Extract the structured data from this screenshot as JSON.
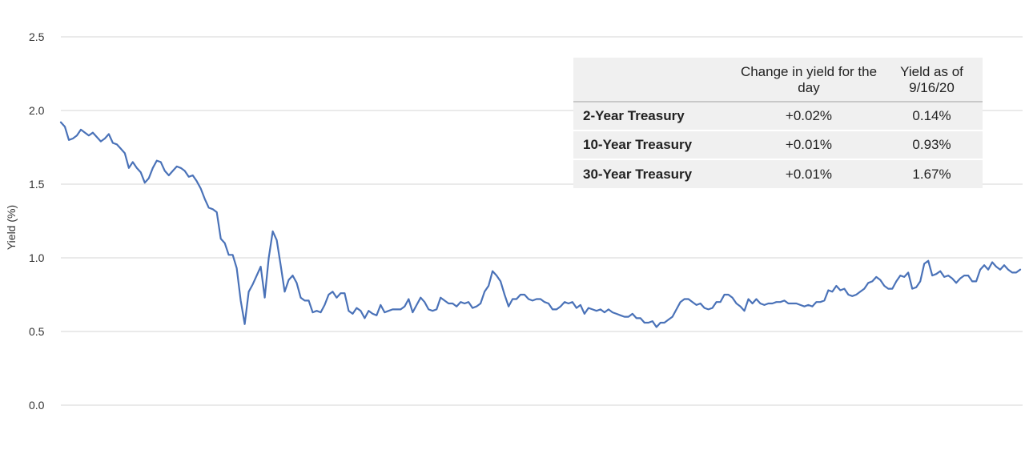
{
  "chart_data": {
    "type": "line",
    "ylabel": "Yield (%)",
    "xlabel": "",
    "ylim": [
      0.0,
      2.5
    ],
    "yticks": [
      "0.0",
      "0.5",
      "1.0",
      "1.5",
      "2.0",
      "2.5"
    ],
    "grid": true,
    "series": [
      {
        "color": "#4a72b8",
        "values": [
          1.92,
          1.89,
          1.8,
          1.81,
          1.83,
          1.87,
          1.85,
          1.83,
          1.85,
          1.82,
          1.79,
          1.81,
          1.84,
          1.78,
          1.77,
          1.74,
          1.71,
          1.61,
          1.65,
          1.61,
          1.58,
          1.51,
          1.54,
          1.61,
          1.66,
          1.65,
          1.59,
          1.56,
          1.59,
          1.62,
          1.61,
          1.59,
          1.55,
          1.56,
          1.52,
          1.47,
          1.4,
          1.34,
          1.33,
          1.31,
          1.13,
          1.1,
          1.02,
          1.02,
          0.93,
          0.71,
          0.55,
          0.77,
          0.82,
          0.88,
          0.94,
          0.73,
          1.0,
          1.18,
          1.12,
          0.95,
          0.77,
          0.85,
          0.88,
          0.83,
          0.73,
          0.71,
          0.71,
          0.63,
          0.64,
          0.63,
          0.68,
          0.75,
          0.77,
          0.73,
          0.76,
          0.76,
          0.64,
          0.62,
          0.66,
          0.64,
          0.59,
          0.64,
          0.62,
          0.61,
          0.68,
          0.63,
          0.64,
          0.65,
          0.65,
          0.65,
          0.67,
          0.72,
          0.63,
          0.68,
          0.73,
          0.7,
          0.65,
          0.64,
          0.65,
          0.73,
          0.71,
          0.69,
          0.69,
          0.67,
          0.7,
          0.69,
          0.7,
          0.66,
          0.67,
          0.69,
          0.77,
          0.81,
          0.91,
          0.88,
          0.84,
          0.75,
          0.67,
          0.72,
          0.72,
          0.75,
          0.75,
          0.72,
          0.71,
          0.72,
          0.72,
          0.7,
          0.69,
          0.65,
          0.65,
          0.67,
          0.7,
          0.69,
          0.7,
          0.66,
          0.68,
          0.62,
          0.66,
          0.65,
          0.64,
          0.65,
          0.63,
          0.65,
          0.63,
          0.62,
          0.61,
          0.6,
          0.6,
          0.62,
          0.59,
          0.59,
          0.56,
          0.56,
          0.57,
          0.53,
          0.56,
          0.56,
          0.58,
          0.6,
          0.65,
          0.7,
          0.72,
          0.72,
          0.7,
          0.68,
          0.69,
          0.66,
          0.65,
          0.66,
          0.7,
          0.7,
          0.75,
          0.75,
          0.73,
          0.69,
          0.67,
          0.64,
          0.72,
          0.69,
          0.72,
          0.69,
          0.68,
          0.69,
          0.69,
          0.7,
          0.7,
          0.71,
          0.69,
          0.69,
          0.69,
          0.68,
          0.67,
          0.68,
          0.67,
          0.7,
          0.7,
          0.71,
          0.78,
          0.77,
          0.81,
          0.78,
          0.79,
          0.75,
          0.74,
          0.75,
          0.77,
          0.79,
          0.83,
          0.84,
          0.87,
          0.85,
          0.81,
          0.79,
          0.79,
          0.84,
          0.88,
          0.87,
          0.9,
          0.79,
          0.8,
          0.84,
          0.96,
          0.98,
          0.88,
          0.89,
          0.91,
          0.87,
          0.88,
          0.86,
          0.83,
          0.86,
          0.88,
          0.88,
          0.84,
          0.84,
          0.92,
          0.95,
          0.92,
          0.97,
          0.94,
          0.92,
          0.95,
          0.92,
          0.9,
          0.9,
          0.92
        ]
      }
    ]
  },
  "table": {
    "headers": [
      "",
      "Change in yield for the day",
      "Yield as of 9/16/20"
    ],
    "rows": [
      {
        "name": "2-Year Treasury",
        "change": "+0.02%",
        "yield": "0.14%"
      },
      {
        "name": "10-Year Treasury",
        "change": "+0.01%",
        "yield": "0.93%"
      },
      {
        "name": "30-Year Treasury",
        "change": "+0.01%",
        "yield": "1.67%"
      }
    ]
  }
}
